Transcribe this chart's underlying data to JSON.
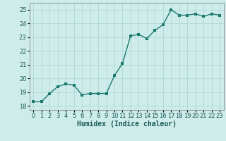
{
  "x": [
    0,
    1,
    2,
    3,
    4,
    5,
    6,
    7,
    8,
    9,
    10,
    11,
    12,
    13,
    14,
    15,
    16,
    17,
    18,
    19,
    20,
    21,
    22,
    23
  ],
  "y": [
    18.3,
    18.3,
    18.9,
    19.4,
    19.6,
    19.5,
    18.8,
    18.9,
    18.9,
    18.9,
    20.2,
    21.1,
    23.1,
    23.2,
    22.9,
    23.5,
    23.9,
    25.0,
    24.6,
    24.6,
    24.7,
    24.5,
    24.7,
    24.6
  ],
  "line_color": "#1a7a6e",
  "marker_color": "#1a7a6e",
  "bg_color": "#ceecea",
  "grid_color": "#b0d8d4",
  "xlabel": "Humidex (Indice chaleur)",
  "ylim": [
    17.7,
    25.5
  ],
  "xlim": [
    -0.5,
    23.5
  ],
  "yticks": [
    18,
    19,
    20,
    21,
    22,
    23,
    24,
    25
  ],
  "xticks": [
    0,
    1,
    2,
    3,
    4,
    5,
    6,
    7,
    8,
    9,
    10,
    11,
    12,
    13,
    14,
    15,
    16,
    17,
    18,
    19,
    20,
    21,
    22,
    23
  ],
  "xlabel_fontsize": 7.0,
  "tick_fontsize": 6.0,
  "linewidth": 1.0,
  "markersize": 2.5
}
